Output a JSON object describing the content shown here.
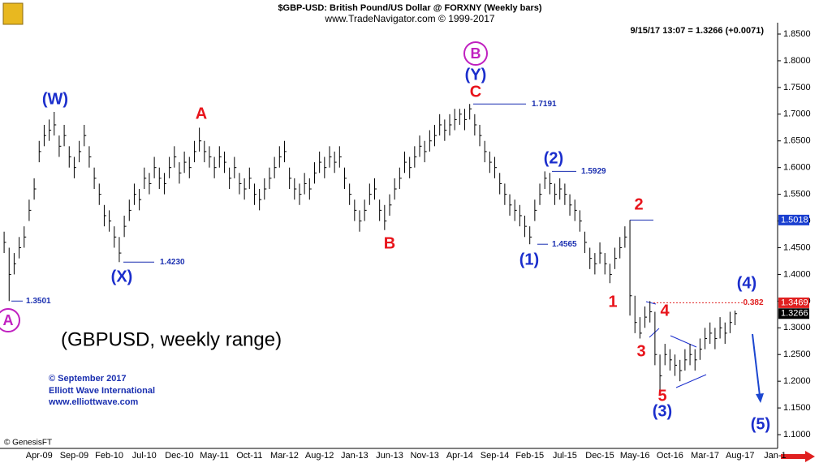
{
  "chart_data": {
    "type": "ohlc",
    "title": "$GBP-USD:  British Pound/US Dollar @ FORXNY  (Weekly bars)",
    "subtitle": "www.TradeNavigator.com © 1999-2017",
    "last_quote": "9/15/17 13:07 = 1.3266 (+0.0071)",
    "caption": "(GBPUSD, weekly range)",
    "credits": [
      "© September 2017",
      "Elliott Wave International",
      "www.elliottwave.com"
    ],
    "source": "© GenesisFT",
    "categories": [
      null,
      null,
      null,
      null,
      null,
      null,
      null,
      "Apr-09",
      null,
      null,
      null,
      null,
      null,
      null,
      "Sep-09",
      null,
      null,
      null,
      null,
      null,
      null,
      "Feb-10",
      null,
      null,
      null,
      null,
      null,
      null,
      "Jul-10",
      null,
      null,
      null,
      null,
      null,
      null,
      "Dec-10",
      null,
      null,
      null,
      null,
      null,
      null,
      "May-11",
      null,
      null,
      null,
      null,
      null,
      null,
      "Oct-11",
      null,
      null,
      null,
      null,
      null,
      null,
      "Mar-12",
      null,
      null,
      null,
      null,
      null,
      null,
      "Aug-12",
      null,
      null,
      null,
      null,
      null,
      null,
      "Jan-13",
      null,
      null,
      null,
      null,
      null,
      null,
      "Jun-13",
      null,
      null,
      null,
      null,
      null,
      null,
      "Nov-13",
      null,
      null,
      null,
      null,
      null,
      null,
      "Apr-14",
      null,
      null,
      null,
      null,
      null,
      null,
      "Sep-14",
      null,
      null,
      null,
      null,
      null,
      null,
      "Feb-15",
      null,
      null,
      null,
      null,
      null,
      null,
      "Jul-15",
      null,
      null,
      null,
      null,
      null,
      null,
      "Dec-15",
      null,
      null,
      null,
      null,
      null,
      null,
      "May-16",
      null,
      null,
      null,
      null,
      null,
      null,
      "Oct-16",
      null,
      null,
      null,
      null,
      null,
      null,
      "Mar-17",
      null,
      null,
      null,
      null,
      null,
      null,
      "Aug-17",
      null,
      null,
      null,
      null,
      null,
      null,
      "Jan-1"
    ],
    "high": [
      1.48,
      1.45,
      1.44,
      1.47,
      1.49,
      1.54,
      1.58,
      1.65,
      1.68,
      1.69,
      1.7043,
      1.66,
      1.68,
      1.64,
      1.62,
      1.65,
      1.68,
      1.64,
      1.6,
      1.57,
      1.53,
      1.52,
      1.49,
      1.47,
      1.51,
      1.54,
      1.57,
      1.56,
      1.6,
      1.59,
      1.62,
      1.6,
      1.59,
      1.62,
      1.64,
      1.61,
      1.63,
      1.62,
      1.65,
      1.6747,
      1.65,
      1.64,
      1.62,
      1.64,
      1.63,
      1.6,
      1.62,
      1.59,
      1.58,
      1.6,
      1.57,
      1.56,
      1.58,
      1.6,
      1.62,
      1.64,
      1.65,
      1.6,
      1.58,
      1.57,
      1.59,
      1.58,
      1.61,
      1.63,
      1.62,
      1.64,
      1.63,
      1.64,
      1.6,
      1.57,
      1.54,
      1.52,
      1.54,
      1.57,
      1.58,
      1.54,
      1.53,
      1.55,
      1.58,
      1.6,
      1.63,
      1.62,
      1.64,
      1.66,
      1.65,
      1.67,
      1.68,
      1.7,
      1.69,
      1.7,
      1.71,
      1.71,
      1.71,
      1.7191,
      1.7,
      1.68,
      1.65,
      1.63,
      1.62,
      1.59,
      1.57,
      1.55,
      1.54,
      1.53,
      1.51,
      1.49,
      1.54,
      1.57,
      1.5929,
      1.59,
      1.57,
      1.58,
      1.57,
      1.55,
      1.54,
      1.52,
      1.48,
      1.45,
      1.44,
      1.46,
      1.44,
      1.42,
      1.45,
      1.47,
      1.49,
      1.5018,
      1.36,
      1.32,
      1.34,
      1.35,
      1.33,
      1.25,
      1.27,
      1.26,
      1.25,
      1.24,
      1.26,
      1.27,
      1.26,
      1.28,
      1.3,
      1.31,
      1.3,
      1.32,
      1.31,
      1.33,
      1.3322,
      null,
      null,
      null,
      null,
      null,
      null,
      null,
      null
    ],
    "low": [
      1.44,
      1.3501,
      1.4,
      1.43,
      1.45,
      1.5,
      1.54,
      1.61,
      1.64,
      1.65,
      1.66,
      1.62,
      1.64,
      1.6,
      1.58,
      1.61,
      1.64,
      1.6,
      1.56,
      1.53,
      1.49,
      1.48,
      1.45,
      1.423,
      1.47,
      1.5,
      1.53,
      1.52,
      1.56,
      1.55,
      1.58,
      1.56,
      1.55,
      1.58,
      1.6,
      1.57,
      1.59,
      1.58,
      1.61,
      1.63,
      1.61,
      1.6,
      1.58,
      1.6,
      1.59,
      1.56,
      1.58,
      1.55,
      1.54,
      1.56,
      1.53,
      1.52,
      1.54,
      1.56,
      1.58,
      1.6,
      1.61,
      1.56,
      1.54,
      1.53,
      1.55,
      1.54,
      1.57,
      1.59,
      1.58,
      1.6,
      1.59,
      1.6,
      1.56,
      1.53,
      1.5,
      1.48,
      1.5,
      1.53,
      1.54,
      1.5,
      1.483,
      1.51,
      1.54,
      1.56,
      1.59,
      1.58,
      1.6,
      1.62,
      1.61,
      1.63,
      1.64,
      1.66,
      1.65,
      1.66,
      1.67,
      1.68,
      1.67,
      1.69,
      1.66,
      1.64,
      1.61,
      1.59,
      1.58,
      1.55,
      1.53,
      1.51,
      1.5,
      1.49,
      1.47,
      1.4565,
      1.5,
      1.53,
      1.56,
      1.55,
      1.53,
      1.54,
      1.53,
      1.51,
      1.5,
      1.48,
      1.44,
      1.41,
      1.4,
      1.42,
      1.4,
      1.3836,
      1.41,
      1.43,
      1.45,
      1.3229,
      1.29,
      1.28,
      1.3,
      1.31,
      1.23,
      1.1841,
      1.23,
      1.22,
      1.21,
      1.2,
      1.22,
      1.23,
      1.22,
      1.24,
      1.26,
      1.27,
      1.26,
      1.28,
      1.27,
      1.29,
      1.305,
      null,
      null,
      null,
      null,
      null,
      null,
      null,
      null
    ],
    "close": [
      1.46,
      1.4,
      1.42,
      1.45,
      1.47,
      1.52,
      1.56,
      1.63,
      1.66,
      1.67,
      1.68,
      1.64,
      1.66,
      1.62,
      1.6,
      1.63,
      1.66,
      1.62,
      1.58,
      1.55,
      1.51,
      1.5,
      1.47,
      1.44,
      1.49,
      1.52,
      1.55,
      1.54,
      1.58,
      1.57,
      1.6,
      1.58,
      1.57,
      1.6,
      1.62,
      1.59,
      1.61,
      1.6,
      1.63,
      1.65,
      1.63,
      1.62,
      1.6,
      1.62,
      1.61,
      1.58,
      1.6,
      1.57,
      1.56,
      1.58,
      1.55,
      1.54,
      1.56,
      1.58,
      1.6,
      1.62,
      1.63,
      1.58,
      1.56,
      1.55,
      1.57,
      1.56,
      1.59,
      1.61,
      1.6,
      1.62,
      1.61,
      1.62,
      1.58,
      1.55,
      1.52,
      1.5,
      1.52,
      1.55,
      1.56,
      1.52,
      1.5,
      1.53,
      1.56,
      1.58,
      1.61,
      1.6,
      1.62,
      1.64,
      1.63,
      1.65,
      1.66,
      1.68,
      1.67,
      1.68,
      1.69,
      1.7,
      1.69,
      1.71,
      1.68,
      1.66,
      1.63,
      1.61,
      1.6,
      1.57,
      1.55,
      1.53,
      1.52,
      1.51,
      1.49,
      1.47,
      1.52,
      1.55,
      1.58,
      1.57,
      1.55,
      1.56,
      1.55,
      1.53,
      1.52,
      1.5,
      1.46,
      1.43,
      1.42,
      1.44,
      1.42,
      1.4,
      1.43,
      1.45,
      1.47,
      1.36,
      1.31,
      1.29,
      1.32,
      1.33,
      1.25,
      1.21,
      1.25,
      1.24,
      1.23,
      1.22,
      1.24,
      1.25,
      1.24,
      1.26,
      1.28,
      1.29,
      1.28,
      1.3,
      1.29,
      1.31,
      1.3266,
      null,
      null,
      null,
      null,
      null,
      null,
      null,
      null
    ],
    "color": "#000000",
    "ylim": [
      1.075,
      1.868
    ],
    "yticks": [
      {
        "value": 1.85,
        "label": "1.8500"
      },
      {
        "value": 1.8,
        "label": "1.8000"
      },
      {
        "value": 1.75,
        "label": "1.7500"
      },
      {
        "value": 1.7,
        "label": "1.7000"
      },
      {
        "value": 1.65,
        "label": "1.6500"
      },
      {
        "value": 1.6,
        "label": "1.6000"
      },
      {
        "value": 1.55,
        "label": "1.5500"
      },
      {
        "value": 1.5,
        "label": "1.5000"
      },
      {
        "value": 1.45,
        "label": "1.4500"
      },
      {
        "value": 1.4,
        "label": "1.4000"
      },
      {
        "value": 1.35,
        "label": "1.3500"
      },
      {
        "value": 1.3,
        "label": "1.3000"
      },
      {
        "value": 1.25,
        "label": "1.2500"
      },
      {
        "value": 1.2,
        "label": "1.2000"
      },
      {
        "value": 1.15,
        "label": "1.1500"
      },
      {
        "value": 1.1,
        "label": "1.1000"
      }
    ],
    "axis_markers": [
      {
        "value": 1.5018,
        "label": "1.5018",
        "color": "#1a3fd0"
      },
      {
        "value": 1.3469,
        "label": "1.3469",
        "color": "#e02020"
      },
      {
        "value": 1.3266,
        "label": "1.3266",
        "color": "#000000"
      }
    ],
    "retracement": {
      "ratio": 0.382,
      "price": 1.3469,
      "color": "#e02020"
    },
    "price_labels": [
      {
        "value": 1.7191,
        "label": "1.7191"
      },
      {
        "value": 1.5929,
        "label": "1.5929"
      },
      {
        "value": 1.4565,
        "label": "1.4565"
      },
      {
        "value": 1.423,
        "label": "1.4230"
      },
      {
        "value": 1.3501,
        "label": "1.3501"
      }
    ],
    "annotations": [
      {
        "text": "(W)",
        "color": "#1b2ecc"
      },
      {
        "text": "(X)",
        "color": "#1b2ecc"
      },
      {
        "text": "A",
        "color": "#e8141b"
      },
      {
        "text": "B",
        "color": "#e8141b"
      },
      {
        "text": "C",
        "color": "#e8141b"
      },
      {
        "text": "(Y)",
        "color": "#1b2ecc"
      },
      {
        "text": "B",
        "color": "#c020c0",
        "circled": true
      },
      {
        "text": "A",
        "color": "#c020c0",
        "circled": true
      },
      {
        "text": "(1)",
        "color": "#1b2ecc"
      },
      {
        "text": "(2)",
        "color": "#1b2ecc"
      },
      {
        "text": "1",
        "color": "#e8141b"
      },
      {
        "text": "2",
        "color": "#e8141b"
      },
      {
        "text": "3",
        "color": "#e8141b"
      },
      {
        "text": "4",
        "color": "#e8141b"
      },
      {
        "text": "5",
        "color": "#e8141b"
      },
      {
        "text": "(3)",
        "color": "#1b2ecc"
      },
      {
        "text": "(4)",
        "color": "#1b2ecc"
      },
      {
        "text": "(5)",
        "color": "#1b2ecc"
      }
    ]
  }
}
